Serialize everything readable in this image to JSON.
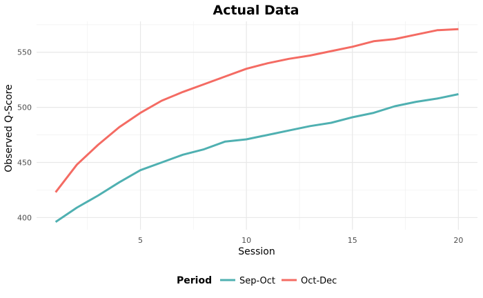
{
  "chart_data": {
    "type": "line",
    "title": "Actual Data",
    "xlabel": "Session",
    "ylabel": "Observed Q-Score",
    "xlim": [
      0.1,
      20.9
    ],
    "ylim": [
      389,
      578
    ],
    "x_ticks": [
      5,
      10,
      15,
      20
    ],
    "y_ticks": [
      400,
      450,
      500,
      550
    ],
    "grid": true,
    "legend": {
      "title": "Period",
      "position": "bottom"
    },
    "x": [
      1,
      2,
      3,
      4,
      5,
      6,
      7,
      8,
      9,
      10,
      11,
      12,
      13,
      14,
      15,
      16,
      17,
      18,
      19,
      20
    ],
    "series": [
      {
        "name": "Sep-Oct",
        "color": "#4fb0b1",
        "values": [
          396,
          409,
          420,
          432,
          443,
          450,
          457,
          462,
          469,
          471,
          475,
          479,
          483,
          486,
          491,
          495,
          501,
          505,
          508,
          512
        ]
      },
      {
        "name": "Oct-Dec",
        "color": "#f46b63",
        "values": [
          423,
          448,
          466,
          482,
          495,
          506,
          514,
          521,
          528,
          535,
          540,
          544,
          547,
          551,
          555,
          560,
          562,
          566,
          570,
          571
        ]
      }
    ]
  }
}
